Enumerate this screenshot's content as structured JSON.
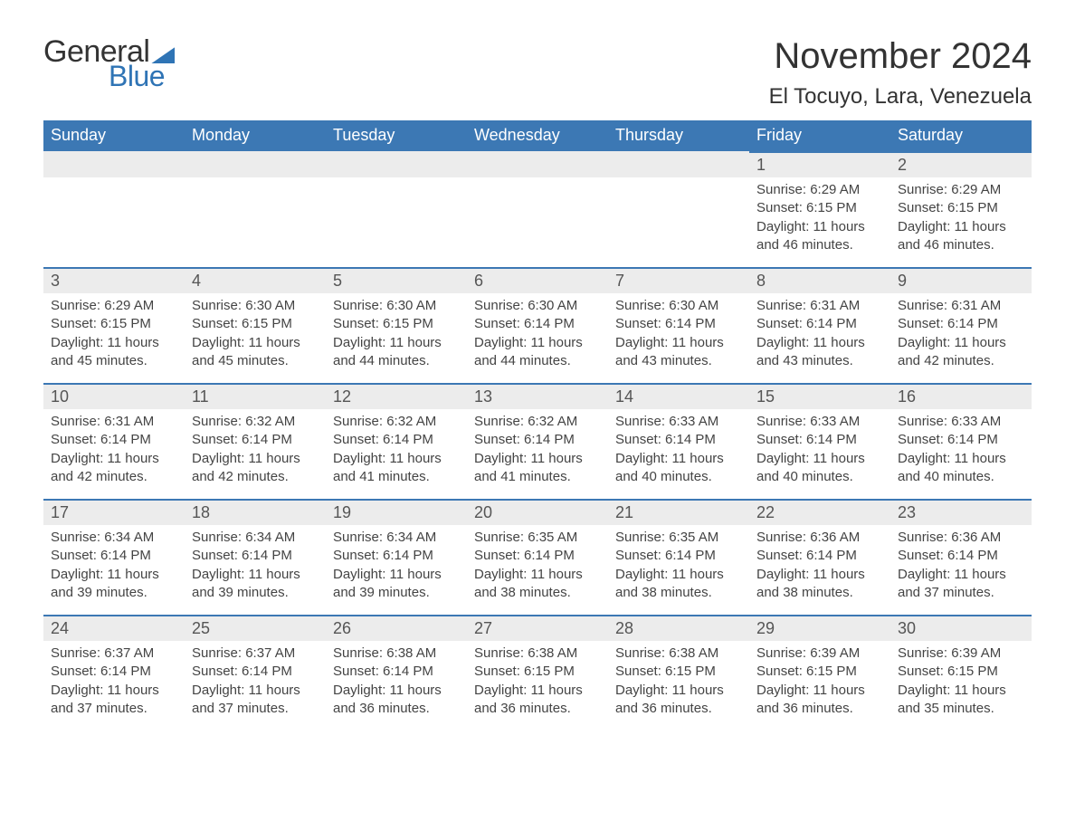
{
  "brand": {
    "word1": "General",
    "word2": "Blue"
  },
  "title": "November 2024",
  "location": "El Tocuyo, Lara, Venezuela",
  "colors": {
    "header_bg": "#3c78b4",
    "header_text": "#ffffff",
    "day_bar_bg": "#ececec",
    "day_bar_border": "#3c78b4",
    "body_text": "#444444",
    "brand_blue": "#2f74b5",
    "page_bg": "#ffffff"
  },
  "day_names": [
    "Sunday",
    "Monday",
    "Tuesday",
    "Wednesday",
    "Thursday",
    "Friday",
    "Saturday"
  ],
  "weeks": [
    [
      {
        "blank": true
      },
      {
        "blank": true
      },
      {
        "blank": true
      },
      {
        "blank": true
      },
      {
        "blank": true
      },
      {
        "num": "1",
        "sunrise": "Sunrise: 6:29 AM",
        "sunset": "Sunset: 6:15 PM",
        "daylight": "Daylight: 11 hours and 46 minutes."
      },
      {
        "num": "2",
        "sunrise": "Sunrise: 6:29 AM",
        "sunset": "Sunset: 6:15 PM",
        "daylight": "Daylight: 11 hours and 46 minutes."
      }
    ],
    [
      {
        "num": "3",
        "sunrise": "Sunrise: 6:29 AM",
        "sunset": "Sunset: 6:15 PM",
        "daylight": "Daylight: 11 hours and 45 minutes."
      },
      {
        "num": "4",
        "sunrise": "Sunrise: 6:30 AM",
        "sunset": "Sunset: 6:15 PM",
        "daylight": "Daylight: 11 hours and 45 minutes."
      },
      {
        "num": "5",
        "sunrise": "Sunrise: 6:30 AM",
        "sunset": "Sunset: 6:15 PM",
        "daylight": "Daylight: 11 hours and 44 minutes."
      },
      {
        "num": "6",
        "sunrise": "Sunrise: 6:30 AM",
        "sunset": "Sunset: 6:14 PM",
        "daylight": "Daylight: 11 hours and 44 minutes."
      },
      {
        "num": "7",
        "sunrise": "Sunrise: 6:30 AM",
        "sunset": "Sunset: 6:14 PM",
        "daylight": "Daylight: 11 hours and 43 minutes."
      },
      {
        "num": "8",
        "sunrise": "Sunrise: 6:31 AM",
        "sunset": "Sunset: 6:14 PM",
        "daylight": "Daylight: 11 hours and 43 minutes."
      },
      {
        "num": "9",
        "sunrise": "Sunrise: 6:31 AM",
        "sunset": "Sunset: 6:14 PM",
        "daylight": "Daylight: 11 hours and 42 minutes."
      }
    ],
    [
      {
        "num": "10",
        "sunrise": "Sunrise: 6:31 AM",
        "sunset": "Sunset: 6:14 PM",
        "daylight": "Daylight: 11 hours and 42 minutes."
      },
      {
        "num": "11",
        "sunrise": "Sunrise: 6:32 AM",
        "sunset": "Sunset: 6:14 PM",
        "daylight": "Daylight: 11 hours and 42 minutes."
      },
      {
        "num": "12",
        "sunrise": "Sunrise: 6:32 AM",
        "sunset": "Sunset: 6:14 PM",
        "daylight": "Daylight: 11 hours and 41 minutes."
      },
      {
        "num": "13",
        "sunrise": "Sunrise: 6:32 AM",
        "sunset": "Sunset: 6:14 PM",
        "daylight": "Daylight: 11 hours and 41 minutes."
      },
      {
        "num": "14",
        "sunrise": "Sunrise: 6:33 AM",
        "sunset": "Sunset: 6:14 PM",
        "daylight": "Daylight: 11 hours and 40 minutes."
      },
      {
        "num": "15",
        "sunrise": "Sunrise: 6:33 AM",
        "sunset": "Sunset: 6:14 PM",
        "daylight": "Daylight: 11 hours and 40 minutes."
      },
      {
        "num": "16",
        "sunrise": "Sunrise: 6:33 AM",
        "sunset": "Sunset: 6:14 PM",
        "daylight": "Daylight: 11 hours and 40 minutes."
      }
    ],
    [
      {
        "num": "17",
        "sunrise": "Sunrise: 6:34 AM",
        "sunset": "Sunset: 6:14 PM",
        "daylight": "Daylight: 11 hours and 39 minutes."
      },
      {
        "num": "18",
        "sunrise": "Sunrise: 6:34 AM",
        "sunset": "Sunset: 6:14 PM",
        "daylight": "Daylight: 11 hours and 39 minutes."
      },
      {
        "num": "19",
        "sunrise": "Sunrise: 6:34 AM",
        "sunset": "Sunset: 6:14 PM",
        "daylight": "Daylight: 11 hours and 39 minutes."
      },
      {
        "num": "20",
        "sunrise": "Sunrise: 6:35 AM",
        "sunset": "Sunset: 6:14 PM",
        "daylight": "Daylight: 11 hours and 38 minutes."
      },
      {
        "num": "21",
        "sunrise": "Sunrise: 6:35 AM",
        "sunset": "Sunset: 6:14 PM",
        "daylight": "Daylight: 11 hours and 38 minutes."
      },
      {
        "num": "22",
        "sunrise": "Sunrise: 6:36 AM",
        "sunset": "Sunset: 6:14 PM",
        "daylight": "Daylight: 11 hours and 38 minutes."
      },
      {
        "num": "23",
        "sunrise": "Sunrise: 6:36 AM",
        "sunset": "Sunset: 6:14 PM",
        "daylight": "Daylight: 11 hours and 37 minutes."
      }
    ],
    [
      {
        "num": "24",
        "sunrise": "Sunrise: 6:37 AM",
        "sunset": "Sunset: 6:14 PM",
        "daylight": "Daylight: 11 hours and 37 minutes."
      },
      {
        "num": "25",
        "sunrise": "Sunrise: 6:37 AM",
        "sunset": "Sunset: 6:14 PM",
        "daylight": "Daylight: 11 hours and 37 minutes."
      },
      {
        "num": "26",
        "sunrise": "Sunrise: 6:38 AM",
        "sunset": "Sunset: 6:14 PM",
        "daylight": "Daylight: 11 hours and 36 minutes."
      },
      {
        "num": "27",
        "sunrise": "Sunrise: 6:38 AM",
        "sunset": "Sunset: 6:15 PM",
        "daylight": "Daylight: 11 hours and 36 minutes."
      },
      {
        "num": "28",
        "sunrise": "Sunrise: 6:38 AM",
        "sunset": "Sunset: 6:15 PM",
        "daylight": "Daylight: 11 hours and 36 minutes."
      },
      {
        "num": "29",
        "sunrise": "Sunrise: 6:39 AM",
        "sunset": "Sunset: 6:15 PM",
        "daylight": "Daylight: 11 hours and 36 minutes."
      },
      {
        "num": "30",
        "sunrise": "Sunrise: 6:39 AM",
        "sunset": "Sunset: 6:15 PM",
        "daylight": "Daylight: 11 hours and 35 minutes."
      }
    ]
  ]
}
